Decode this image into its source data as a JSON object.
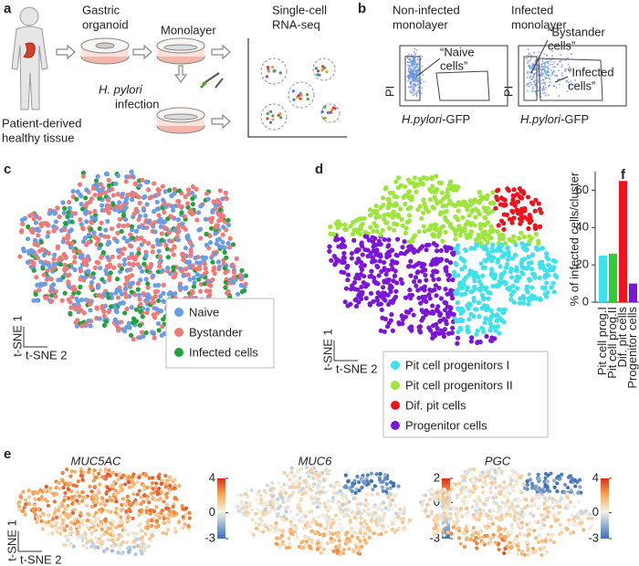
{
  "panel_labels": [
    "a",
    "b",
    "c",
    "d",
    "e",
    "f"
  ],
  "workflow": {
    "source": [
      "Patient-derived",
      "healthy tissue"
    ],
    "organoid": [
      "Gastric",
      "organoid"
    ],
    "monolayer": "Monolayer",
    "infection": [
      "H. pylori",
      "infection"
    ],
    "sequencing": [
      "Single-cell",
      "RNA-seq"
    ]
  },
  "facs": {
    "ylabel": "PI",
    "xlabel": [
      "H.pylori",
      "-GFP"
    ],
    "plots": [
      {
        "title": [
          "Non-infected",
          "monolayer"
        ],
        "gates": [
          [
            "“Naive",
            "cells”"
          ]
        ]
      },
      {
        "title": [
          "Infected",
          "monolayer"
        ],
        "gates": [
          [
            "“Bystander",
            "cells”"
          ],
          [
            "“Infected",
            "cells”"
          ]
        ]
      }
    ]
  },
  "tsne": {
    "axis1": "t-SNE 1",
    "axis2": "t-SNE 2",
    "c": {
      "legend": [
        {
          "name": "Naive",
          "color": "#6a9de3"
        },
        {
          "name": "Bystander",
          "color": "#f07a78"
        },
        {
          "name": "Infected cells",
          "color": "#22a33a"
        }
      ]
    },
    "d": {
      "legend": [
        {
          "name": "Pit cell progenitors I",
          "color": "#3fe2ea"
        },
        {
          "name": "Pit cell progenitors II",
          "color": "#9ce63a"
        },
        {
          "name": "Dif. pit cells",
          "color": "#e8141e"
        },
        {
          "name": "Progenitor cells",
          "color": "#7b16d6"
        }
      ]
    }
  },
  "expression": {
    "maps": [
      {
        "gene": "MUC5AC",
        "clim": [
          -3,
          4
        ],
        "ticks": [
          4,
          0,
          -3
        ]
      },
      {
        "gene": "MUC6",
        "clim": [
          -3,
          2
        ],
        "ticks": [
          2,
          0,
          -3
        ]
      },
      {
        "gene": "PGC",
        "clim": [
          -3,
          4
        ],
        "ticks": [
          4,
          0,
          -3
        ]
      }
    ]
  },
  "chart_data": {
    "type": "bar",
    "ylabel": "% of infected cells/cluster",
    "categories": [
      "Pit cell prog.I",
      "Pit cell prog.II",
      "Dif. pit cells",
      "Progenitor cells"
    ],
    "values": [
      25,
      26,
      65,
      10
    ],
    "colors": [
      "#3fe2ea",
      "#33cc33",
      "#f0141e",
      "#7b16d6"
    ],
    "ylim": [
      0,
      70
    ],
    "yticks": [
      0,
      20,
      40,
      60
    ]
  }
}
